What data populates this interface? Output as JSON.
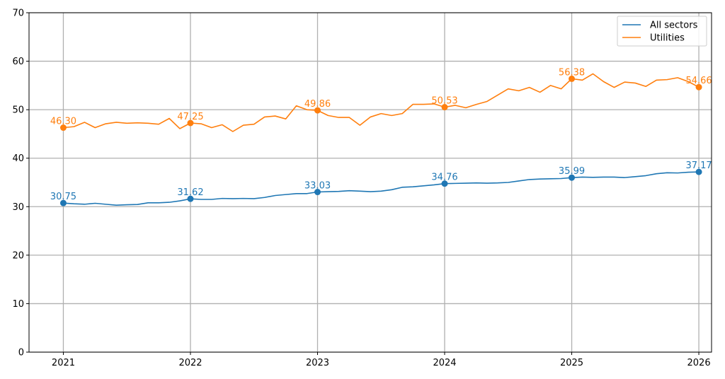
{
  "chart_data": {
    "type": "line",
    "title": "",
    "xlabel": "",
    "ylabel": "",
    "x_ticks": [
      "2021",
      "2022",
      "2023",
      "2024",
      "2025",
      "2026"
    ],
    "y_ticks": [
      "0",
      "10",
      "20",
      "30",
      "40",
      "50",
      "60",
      "70"
    ],
    "ylim": [
      0,
      70
    ],
    "xlim": [
      2020.73,
      2026.1
    ],
    "grid": true,
    "legend_position": "top-right",
    "series": [
      {
        "name": "All sectors",
        "color": "#1f77b4",
        "values": [
          30.75,
          30.6,
          30.5,
          30.7,
          30.5,
          30.3,
          30.4,
          30.45,
          30.8,
          30.8,
          30.9,
          31.2,
          31.62,
          31.5,
          31.5,
          31.7,
          31.65,
          31.7,
          31.65,
          31.9,
          32.3,
          32.5,
          32.7,
          32.7,
          33.03,
          33.1,
          33.15,
          33.3,
          33.2,
          33.1,
          33.2,
          33.5,
          34.0,
          34.1,
          34.3,
          34.5,
          34.76,
          34.8,
          34.85,
          34.9,
          34.85,
          34.9,
          35.0,
          35.3,
          35.6,
          35.7,
          35.75,
          35.8,
          35.99,
          36.1,
          36.05,
          36.1,
          36.1,
          36.0,
          36.2,
          36.4,
          36.8,
          37.0,
          36.95,
          37.1,
          37.17
        ],
        "markers": [
          {
            "x": "2021",
            "value": 30.75,
            "label": "30.75"
          },
          {
            "x": "2022",
            "value": 31.62,
            "label": "31.62"
          },
          {
            "x": "2023",
            "value": 33.03,
            "label": "33.03"
          },
          {
            "x": "2024",
            "value": 34.76,
            "label": "34.76"
          },
          {
            "x": "2025",
            "value": 35.99,
            "label": "35.99"
          },
          {
            "x": "2026",
            "value": 37.17,
            "label": "37.17"
          }
        ]
      },
      {
        "name": "Utilities",
        "color": "#ff7f0e",
        "values": [
          46.3,
          46.5,
          47.4,
          46.3,
          47.1,
          47.4,
          47.2,
          47.3,
          47.2,
          47.0,
          48.2,
          46.1,
          47.25,
          47.1,
          46.3,
          46.9,
          45.5,
          46.8,
          47.0,
          48.5,
          48.7,
          48.1,
          50.8,
          50.0,
          49.86,
          48.8,
          48.4,
          48.4,
          46.8,
          48.5,
          49.2,
          48.8,
          49.2,
          51.1,
          51.1,
          51.2,
          50.53,
          50.9,
          50.4,
          51.1,
          51.7,
          53.0,
          54.3,
          53.9,
          54.6,
          53.6,
          55.0,
          54.3,
          56.38,
          56.1,
          57.4,
          55.8,
          54.6,
          55.7,
          55.5,
          54.8,
          56.1,
          56.2,
          56.6,
          55.8,
          54.66
        ],
        "markers": [
          {
            "x": "2021",
            "value": 46.3,
            "label": "46.30"
          },
          {
            "x": "2022",
            "value": 47.25,
            "label": "47.25"
          },
          {
            "x": "2023",
            "value": 49.86,
            "label": "49.86"
          },
          {
            "x": "2024",
            "value": 50.53,
            "label": "50.53"
          },
          {
            "x": "2025",
            "value": 56.38,
            "label": "56.38"
          },
          {
            "x": "2026",
            "value": 54.66,
            "label": "54.66"
          }
        ]
      }
    ]
  }
}
